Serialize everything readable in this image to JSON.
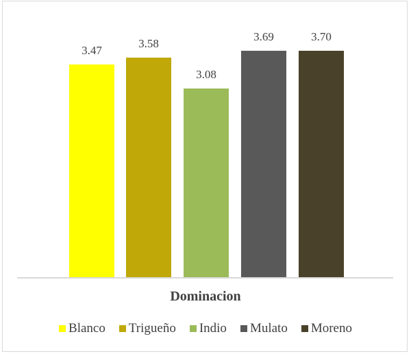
{
  "chart_data": {
    "type": "bar",
    "title": "Dominacion",
    "xlabel": "",
    "ylabel": "",
    "categories": [
      "Blanco",
      "Trigueño",
      "Indio",
      "Mulato",
      "Moreno"
    ],
    "values": [
      3.47,
      3.58,
      3.08,
      3.69,
      3.7
    ],
    "value_labels": [
      "3.47",
      "3.58",
      "3.08",
      "3.69",
      "3.70"
    ],
    "colors": [
      "#ffff00",
      "#bfa807",
      "#9bbb59",
      "#595959",
      "#494129"
    ],
    "ylim": [
      0,
      4.2
    ],
    "grid": false,
    "legend_position": "bottom"
  },
  "legend": [
    {
      "label": "Blanco",
      "color": "#ffff00"
    },
    {
      "label": "Trigueño",
      "color": "#bfa807"
    },
    {
      "label": "Indio",
      "color": "#9bbb59"
    },
    {
      "label": "Mulato",
      "color": "#595959"
    },
    {
      "label": "Moreno",
      "color": "#494129"
    }
  ]
}
